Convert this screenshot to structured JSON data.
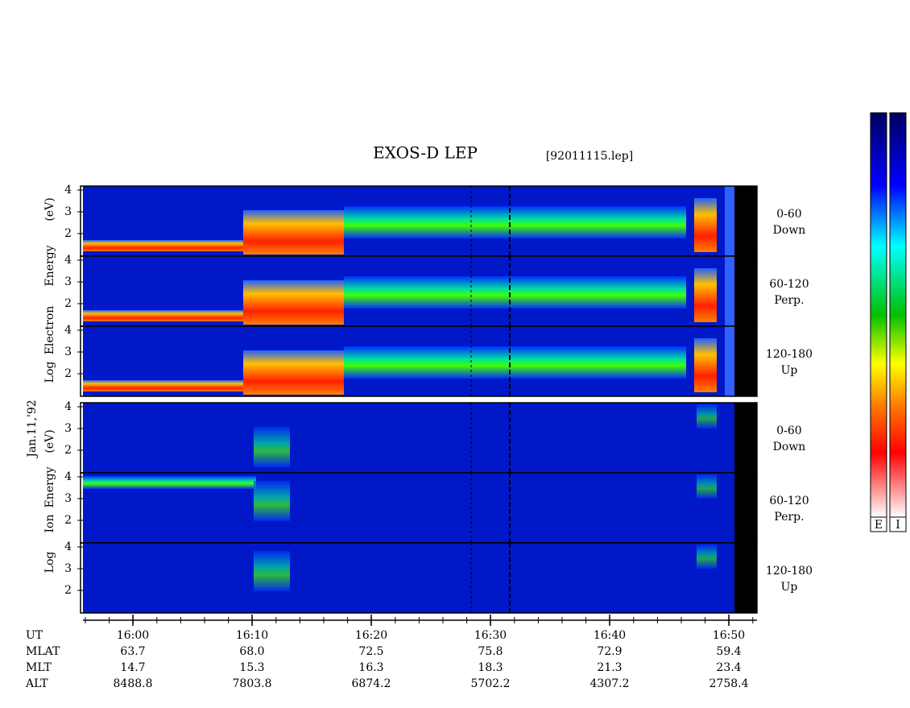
{
  "title": "EXOS-D LEP",
  "file": "[92011115.lep]",
  "date": "Jan.11,'92",
  "electron_axis_label": [
    "Log",
    "Electron",
    "Energy",
    "(eV)"
  ],
  "ion_axis_label": [
    "Log",
    "Ion",
    "Energy",
    "(eV)"
  ],
  "yticks": [
    2,
    3,
    4
  ],
  "panels": [
    {
      "species": "electron",
      "angle": "0-60",
      "direction": "Down"
    },
    {
      "species": "electron",
      "angle": "60-120",
      "direction": "Perp."
    },
    {
      "species": "electron",
      "angle": "120-180",
      "direction": "Up"
    },
    {
      "species": "ion",
      "angle": "0-60",
      "direction": "Down"
    },
    {
      "species": "ion",
      "angle": "60-120",
      "direction": "Perp."
    },
    {
      "species": "ion",
      "angle": "120-180",
      "direction": "Up"
    }
  ],
  "ephemeris": [
    {
      "label": "UT",
      "values": [
        "16:00",
        "16:10",
        "16:20",
        "16:30",
        "16:40",
        "16:50"
      ]
    },
    {
      "label": "MLAT",
      "values": [
        "63.7",
        "68.0",
        "72.5",
        "75.8",
        "72.9",
        "59.4"
      ]
    },
    {
      "label": "MLT",
      "values": [
        "14.7",
        "15.3",
        "16.3",
        "18.3",
        "21.3",
        "23.4"
      ]
    },
    {
      "label": "ALT",
      "values": [
        "8488.8",
        "7803.8",
        "6874.2",
        "5702.2",
        "4307.2",
        "2758.4"
      ]
    }
  ],
  "colorbars": [
    "E",
    "I"
  ]
}
